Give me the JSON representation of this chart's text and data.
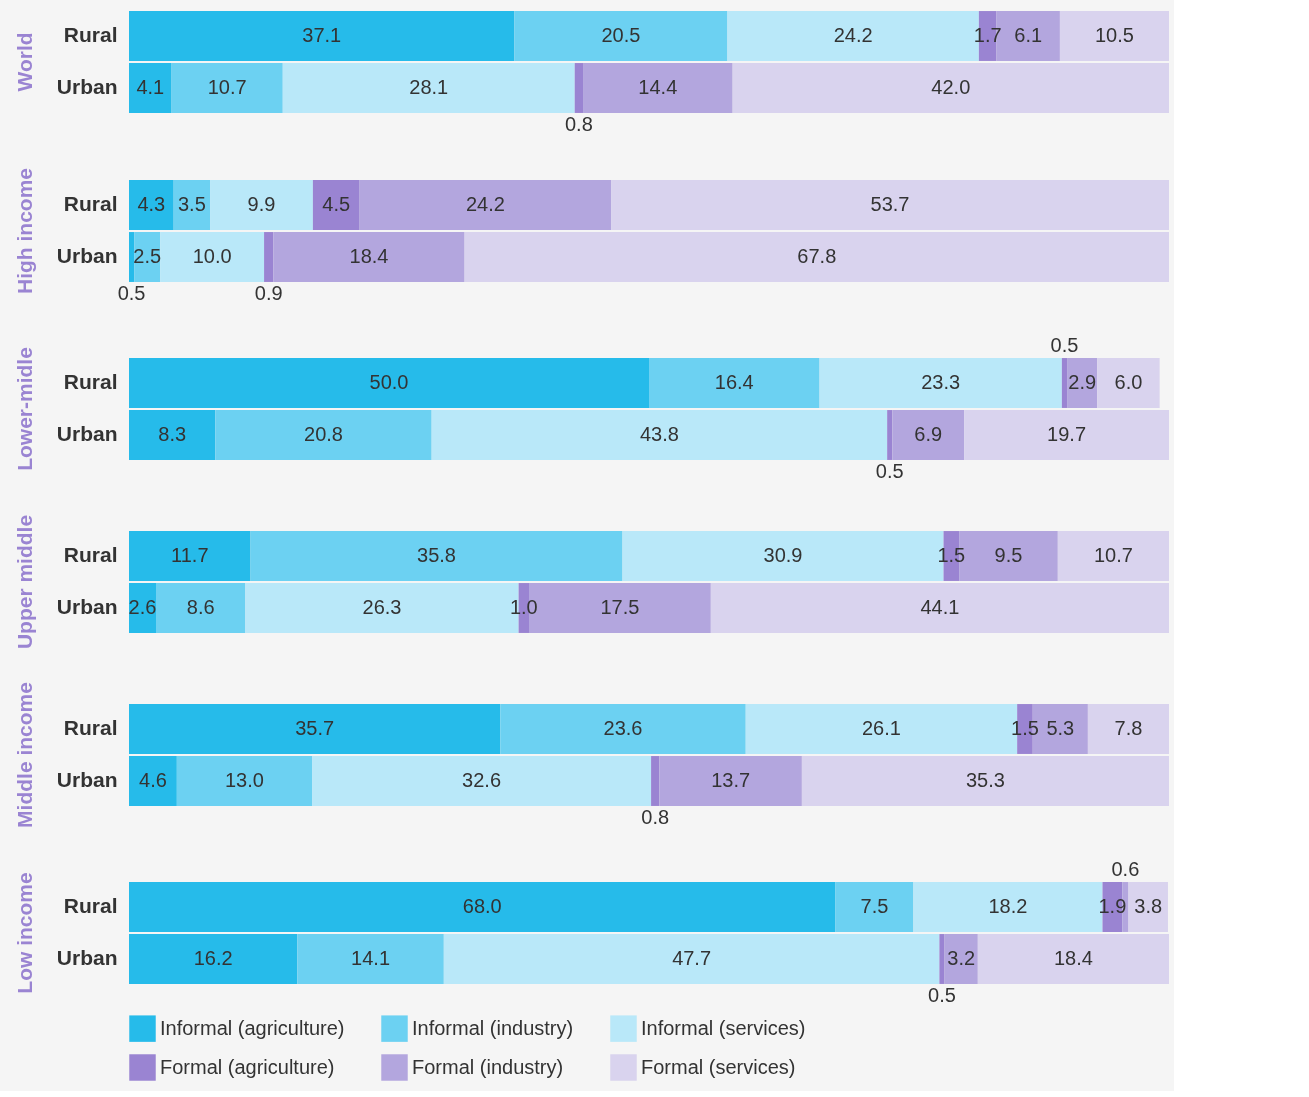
{
  "chart_data": [
    {
      "type": "bar",
      "title": "World",
      "orientation": "horizontal",
      "stacked": true,
      "categories": [
        "Rural",
        "Urban"
      ],
      "series": [
        {
          "color": "#26bbea",
          "values": [
            37.1,
            4.1
          ],
          "value_labels": [
            "37.1",
            "4.1"
          ]
        },
        {
          "color": "#6cd1f2",
          "values": [
            20.5,
            10.7
          ],
          "value_labels": [
            "20.5",
            "10.7"
          ]
        },
        {
          "color": "#b9e8f9",
          "values": [
            24.2,
            28.1
          ],
          "value_labels": [
            "24.2",
            "28.1"
          ]
        },
        {
          "color": "#9a84d2",
          "values": [
            1.7,
            0.8
          ],
          "value_labels": [
            "1.7",
            "0.8"
          ]
        },
        {
          "color": "#b3a6de",
          "values": [
            6.1,
            14.4
          ],
          "value_labels": [
            "6.1",
            "14.4"
          ]
        },
        {
          "color": "#d9d3ee",
          "values": [
            10.5,
            42.0
          ],
          "value_labels": [
            "10.5",
            "42.0"
          ]
        }
      ]
    },
    {
      "type": "bar",
      "title": "High income",
      "orientation": "horizontal",
      "stacked": true,
      "categories": [
        "Rural",
        "Urban"
      ],
      "series": [
        {
          "color": "#26bbea",
          "values": [
            4.3,
            0.5
          ],
          "value_labels": [
            "4.3",
            "0.5"
          ]
        },
        {
          "color": "#6cd1f2",
          "values": [
            3.5,
            2.5
          ],
          "value_labels": [
            "3.5",
            "2.5"
          ]
        },
        {
          "color": "#b9e8f9",
          "values": [
            9.9,
            10.0
          ],
          "value_labels": [
            "9.9",
            "10.0"
          ]
        },
        {
          "color": "#9a84d2",
          "values": [
            4.5,
            0.9
          ],
          "value_labels": [
            "4.5",
            "0.9"
          ]
        },
        {
          "color": "#b3a6de",
          "values": [
            24.2,
            18.4
          ],
          "value_labels": [
            "24.2",
            "18.4"
          ]
        },
        {
          "color": "#d9d3ee",
          "values": [
            53.7,
            67.8
          ],
          "value_labels": [
            "53.7",
            "67.8"
          ]
        }
      ]
    },
    {
      "type": "bar",
      "title": "Lower-midle",
      "orientation": "horizontal",
      "stacked": true,
      "categories": [
        "Rural",
        "Urban"
      ],
      "series": [
        {
          "color": "#26bbea",
          "values": [
            50.0,
            8.3
          ],
          "value_labels": [
            "50.0",
            "8.3"
          ]
        },
        {
          "color": "#6cd1f2",
          "values": [
            16.4,
            20.8
          ],
          "value_labels": [
            "16.4",
            "20.8"
          ]
        },
        {
          "color": "#b9e8f9",
          "values": [
            23.3,
            43.8
          ],
          "value_labels": [
            "23.3",
            "43.8"
          ]
        },
        {
          "color": "#9a84d2",
          "values": [
            0.5,
            0.5
          ],
          "value_labels": [
            "0.5",
            "0.5"
          ]
        },
        {
          "color": "#b3a6de",
          "values": [
            2.9,
            6.9
          ],
          "value_labels": [
            "2.9",
            "6.9"
          ]
        },
        {
          "color": "#d9d3ee",
          "values": [
            6.0,
            19.7
          ],
          "value_labels": [
            "6.0",
            "19.7"
          ]
        }
      ]
    },
    {
      "type": "bar",
      "title": "Upper middle",
      "orientation": "horizontal",
      "stacked": true,
      "categories": [
        "Rural",
        "Urban"
      ],
      "series": [
        {
          "color": "#26bbea",
          "values": [
            11.7,
            2.6
          ],
          "value_labels": [
            "11.7",
            "2.6"
          ]
        },
        {
          "color": "#6cd1f2",
          "values": [
            35.8,
            8.6
          ],
          "value_labels": [
            "35.8",
            "8.6"
          ]
        },
        {
          "color": "#b9e8f9",
          "values": [
            30.9,
            26.3
          ],
          "value_labels": [
            "30.9",
            "26.3"
          ]
        },
        {
          "color": "#9a84d2",
          "values": [
            1.5,
            1.0
          ],
          "value_labels": [
            "1.5",
            "1.0"
          ]
        },
        {
          "color": "#b3a6de",
          "values": [
            9.5,
            17.5
          ],
          "value_labels": [
            "9.5",
            "17.5"
          ]
        },
        {
          "color": "#d9d3ee",
          "values": [
            10.7,
            44.1
          ],
          "value_labels": [
            "10.7",
            "44.1"
          ]
        }
      ]
    },
    {
      "type": "bar",
      "title": "Middle income",
      "orientation": "horizontal",
      "stacked": true,
      "categories": [
        "Rural",
        "Urban"
      ],
      "series": [
        {
          "color": "#26bbea",
          "values": [
            35.7,
            4.6
          ],
          "value_labels": [
            "35.7",
            "4.6"
          ]
        },
        {
          "color": "#6cd1f2",
          "values": [
            23.6,
            13.0
          ],
          "value_labels": [
            "23.6",
            "13.0"
          ]
        },
        {
          "color": "#b9e8f9",
          "values": [
            26.1,
            32.6
          ],
          "value_labels": [
            "26.1",
            "32.6"
          ]
        },
        {
          "color": "#9a84d2",
          "values": [
            1.5,
            0.8
          ],
          "value_labels": [
            "1.5",
            "0.8"
          ]
        },
        {
          "color": "#b3a6de",
          "values": [
            5.3,
            13.7
          ],
          "value_labels": [
            "5.3",
            "13.7"
          ]
        },
        {
          "color": "#d9d3ee",
          "values": [
            7.8,
            35.3
          ],
          "value_labels": [
            "7.8",
            "35.3"
          ]
        }
      ]
    },
    {
      "type": "bar",
      "title": "Low income",
      "orientation": "horizontal",
      "stacked": true,
      "legend": "bottom",
      "categories": [
        "Rural",
        "Urban"
      ],
      "series": [
        {
          "name": "Informal (agriculture)",
          "color": "#26bbea",
          "values": [
            68.0,
            16.2
          ],
          "value_labels": [
            "68.0",
            "16.2"
          ]
        },
        {
          "name": "Informal (industry)",
          "color": "#6cd1f2",
          "values": [
            7.5,
            14.1
          ],
          "value_labels": [
            "7.5",
            "14.1"
          ]
        },
        {
          "name": "Informal (services)",
          "color": "#b9e8f9",
          "values": [
            18.2,
            47.7
          ],
          "value_labels": [
            "18.2",
            "47.7"
          ]
        },
        {
          "name": "Formal (agriculture)",
          "color": "#9a84d2",
          "values": [
            1.9,
            0.5
          ],
          "value_labels": [
            "1.9",
            "0.5"
          ]
        },
        {
          "name": "Formal (industry)",
          "color": "#b3a6de",
          "values": [
            0.6,
            3.2
          ],
          "value_labels": [
            "0.6",
            "3.2"
          ]
        },
        {
          "name": "Formal (services)",
          "color": "#d9d3ee",
          "values": [
            3.8,
            18.4
          ],
          "value_labels": [
            "3.8",
            "18.4"
          ]
        }
      ]
    }
  ]
}
